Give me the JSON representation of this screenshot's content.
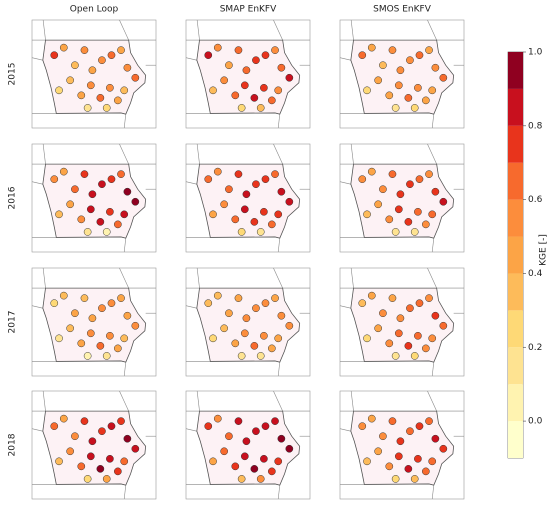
{
  "chart_data": {
    "type": "map",
    "columns": [
      "Open Loop",
      "SMAP EnKFV",
      "SMOS EnKFV"
    ],
    "rows": [
      "2015",
      "2016",
      "2017",
      "2018"
    ],
    "colorbar_label": "KGE [-]",
    "ylim_colorbar": [
      -0.1,
      1.0
    ],
    "colorbar_ticks": [
      {
        "value": 0,
        "label": "0.0"
      },
      0.2,
      0.4,
      0.6,
      0.8,
      {
        "value": 1,
        "label": "1.0"
      }
    ],
    "levels": [
      -0.1,
      0,
      0.1,
      0.2,
      0.3,
      0.4,
      0.5,
      0.6,
      0.7,
      0.8,
      0.9,
      1.0
    ],
    "colors": [
      "#ffffcc",
      "#fff3b0",
      "#fee391",
      "#fed976",
      "#fdbb5a",
      "#fca446",
      "#fc8d3c",
      "#f76a2d",
      "#e8341c",
      "#c8101e",
      "#8f0020"
    ],
    "xlim": [
      -97.3,
      -89.5
    ],
    "ylim": [
      40.0,
      44.3
    ],
    "x": [
      -95.9,
      -95.3,
      -94.6,
      -94.0,
      -93.5,
      -92.9,
      -92.3,
      -91.7,
      -91.3,
      -90.8,
      -95.6,
      -94.9,
      -94.2,
      -93.6,
      -93.0,
      -92.4,
      -91.9,
      -91.5,
      -93.8,
      -92.6
    ],
    "y": [
      42.9,
      43.2,
      42.5,
      43.1,
      42.3,
      42.7,
      42.9,
      43.1,
      42.4,
      42.0,
      41.5,
      41.9,
      41.3,
      41.7,
      41.2,
      41.6,
      41.1,
      41.5,
      40.8,
      40.8
    ],
    "panels": [
      [
        0.7,
        0.4,
        0.3,
        0.5,
        0.4,
        0.5,
        0.6,
        0.4,
        0.5,
        0.6,
        0.2,
        0.3,
        0.4,
        0.5,
        0.6,
        0.5,
        0.4,
        0.3,
        0.1,
        0.2
      ],
      [
        0.8,
        0.5,
        0.4,
        0.6,
        0.6,
        0.7,
        0.7,
        0.5,
        0.6,
        0.8,
        0.3,
        0.5,
        0.6,
        0.7,
        0.8,
        0.7,
        0.6,
        0.5,
        0.2,
        0.3
      ],
      [
        0.6,
        0.4,
        0.3,
        0.5,
        0.5,
        0.5,
        0.6,
        0.4,
        0.5,
        0.6,
        0.2,
        0.4,
        0.4,
        0.5,
        0.6,
        0.5,
        0.4,
        0.4,
        0.1,
        0.2
      ],
      [
        0.5,
        0.4,
        0.6,
        0.7,
        0.8,
        0.8,
        0.7,
        0.6,
        0.9,
        0.9,
        0.3,
        0.4,
        0.5,
        0.8,
        0.8,
        0.7,
        0.6,
        0.8,
        0.1,
        0.0
      ],
      [
        0.6,
        0.5,
        0.6,
        0.7,
        0.8,
        0.7,
        0.7,
        0.6,
        0.8,
        0.8,
        0.4,
        0.5,
        0.6,
        0.8,
        0.7,
        0.7,
        0.6,
        0.7,
        0.2,
        0.1
      ],
      [
        0.5,
        0.4,
        0.5,
        0.6,
        0.7,
        0.7,
        0.6,
        0.5,
        0.7,
        0.8,
        0.3,
        0.4,
        0.5,
        0.7,
        0.7,
        0.6,
        0.5,
        0.6,
        0.1,
        0.1
      ],
      [
        0.2,
        0.3,
        0.4,
        0.3,
        0.4,
        0.5,
        0.5,
        0.4,
        0.4,
        0.5,
        0.1,
        0.3,
        0.4,
        0.5,
        0.6,
        0.5,
        0.4,
        0.3,
        0.0,
        0.1
      ],
      [
        0.3,
        0.3,
        0.4,
        0.4,
        0.5,
        0.5,
        0.5,
        0.4,
        0.5,
        0.5,
        0.2,
        0.3,
        0.4,
        0.5,
        0.6,
        0.5,
        0.4,
        0.4,
        0.1,
        0.1
      ],
      [
        0.3,
        0.4,
        0.5,
        0.4,
        0.5,
        0.6,
        0.6,
        0.5,
        0.7,
        0.6,
        0.2,
        0.4,
        0.5,
        0.6,
        0.7,
        0.6,
        0.5,
        0.5,
        0.1,
        0.2
      ],
      [
        0.6,
        0.4,
        0.5,
        0.7,
        0.8,
        0.7,
        0.8,
        0.7,
        0.9,
        0.8,
        0.3,
        0.5,
        0.6,
        0.8,
        0.9,
        0.8,
        0.7,
        0.6,
        0.2,
        0.4
      ],
      [
        0.7,
        0.5,
        0.6,
        0.8,
        0.8,
        0.8,
        0.8,
        0.8,
        0.9,
        0.9,
        0.4,
        0.6,
        0.7,
        0.8,
        0.9,
        0.8,
        0.7,
        0.7,
        0.3,
        0.5
      ],
      [
        0.5,
        0.4,
        0.5,
        0.6,
        0.7,
        0.6,
        0.7,
        0.6,
        0.8,
        0.7,
        0.3,
        0.4,
        0.5,
        0.7,
        0.8,
        0.7,
        0.6,
        0.6,
        0.2,
        0.3
      ]
    ]
  }
}
